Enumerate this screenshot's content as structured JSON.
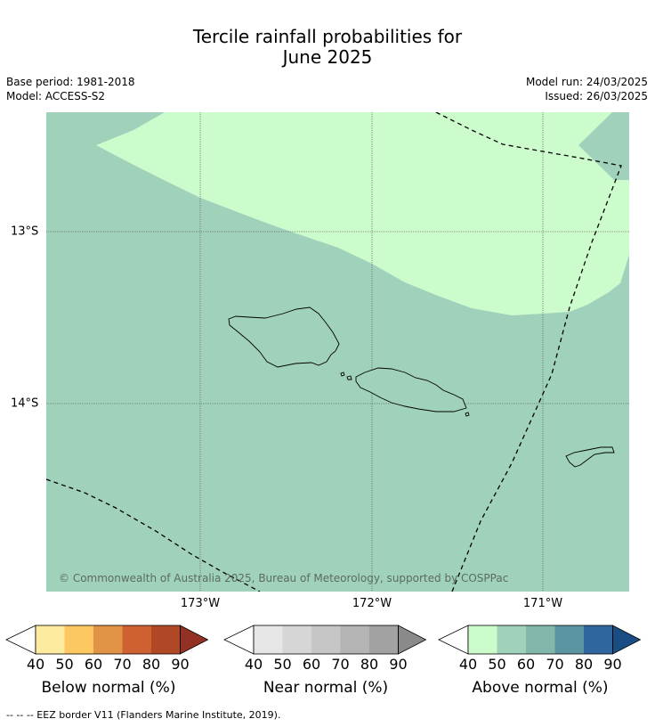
{
  "header": {
    "title_line1": "Tercile rainfall probabilities for",
    "title_line2": "June 2025",
    "base_period": "Base period: 1981-2018",
    "model": "Model: ACCESS-S2",
    "model_run": "Model run: 24/03/2025",
    "issued": "Issued: 26/03/2025"
  },
  "map": {
    "copyright": "© Commonwealth of Australia 2025, Bureau of Meteorology, supported by COSPPac",
    "lon_labels": [
      "173°W",
      "172°W",
      "171°W"
    ],
    "lat_labels": [
      "13°S",
      "14°S"
    ],
    "colors": {
      "above_50_60": "#a0d1bb",
      "above_40_50": "#ccfccc"
    }
  },
  "legend": {
    "below": {
      "title": "Below normal (%)",
      "ticks": [
        "40",
        "50",
        "60",
        "70",
        "80",
        "90"
      ],
      "colors": [
        "#fdeba0",
        "#fdc762",
        "#e19346",
        "#cf6032",
        "#b04826",
        "#933124"
      ]
    },
    "near": {
      "title": "Near normal (%)",
      "ticks": [
        "40",
        "50",
        "60",
        "70",
        "80",
        "90"
      ],
      "colors": [
        "#e6e6e6",
        "#d6d6d6",
        "#c6c6c6",
        "#b4b4b4",
        "#a2a2a2",
        "#8a8a8a"
      ]
    },
    "above": {
      "title": "Above normal (%)",
      "ticks": [
        "40",
        "50",
        "60",
        "70",
        "80",
        "90"
      ],
      "colors": [
        "#ccfccc",
        "#a0d1bb",
        "#84b7ab",
        "#5c95a2",
        "#31659d",
        "#1b4d85"
      ]
    }
  },
  "footnote": "--  --  -- EEZ border V11 (Flanders Marine Institute, 2019)."
}
